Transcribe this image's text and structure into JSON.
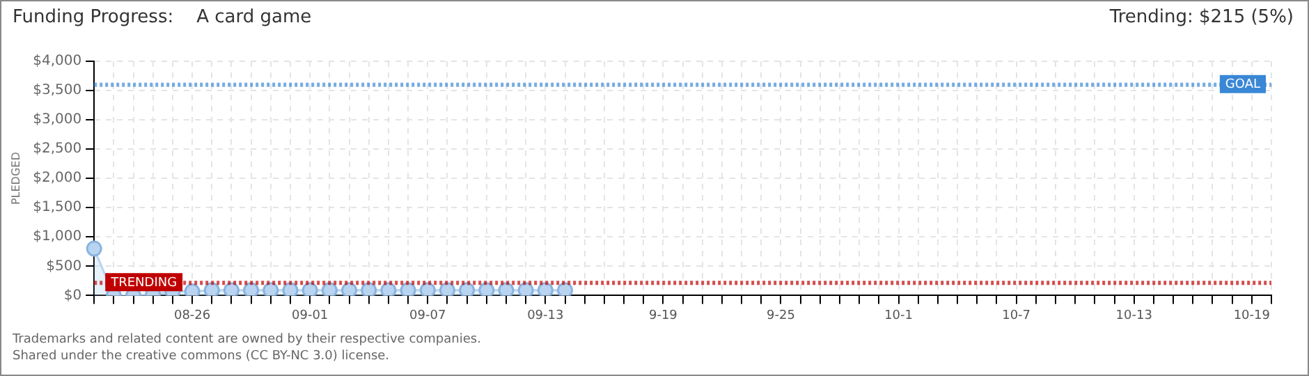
{
  "chart_data": {
    "type": "area",
    "title": "Funding Progress:    A card game",
    "subtitle": "Trending: $215 (5%)",
    "ylabel": "PLEDGED",
    "categories": [
      null,
      null,
      null,
      null,
      null,
      "08-26",
      null,
      null,
      null,
      null,
      null,
      "09-01",
      null,
      null,
      null,
      null,
      null,
      "09-07",
      null,
      null,
      null,
      null,
      null,
      "09-13",
      null,
      null,
      null,
      null,
      null,
      "9-19",
      null,
      null,
      null,
      null,
      null,
      "9-25",
      null,
      null,
      null,
      null,
      null,
      "10-1",
      null,
      null,
      null,
      null,
      null,
      "10-7",
      null,
      null,
      null,
      null,
      null,
      "10-13",
      null,
      null,
      null,
      null,
      null,
      "10-19",
      null
    ],
    "series": [
      {
        "color": "#b8d4f0",
        "values": [
          800,
          0,
          0,
          20,
          70,
          70,
          90,
          90,
          90,
          90,
          90,
          90,
          90,
          90,
          90,
          90,
          90,
          90,
          90,
          90,
          90,
          90,
          90,
          90,
          90,
          null,
          null,
          null,
          null,
          null,
          null,
          null,
          null,
          null,
          null,
          null,
          null,
          null,
          null,
          null,
          null,
          null,
          null,
          null,
          null,
          null,
          null,
          null,
          null,
          null,
          null,
          null,
          null,
          null,
          null,
          null,
          null,
          null,
          null,
          null,
          null
        ]
      }
    ],
    "ylim": [
      0,
      4000
    ],
    "yticks": [
      {
        "value": 0,
        "label": "$0"
      },
      {
        "value": 500,
        "label": "$500"
      },
      {
        "value": 1000,
        "label": "$1,000"
      },
      {
        "value": 1500,
        "label": "$1,500"
      },
      {
        "value": 2000,
        "label": "$2,000"
      },
      {
        "value": 2500,
        "label": "$2,500"
      },
      {
        "value": 3000,
        "label": "$3,000"
      },
      {
        "value": 3500,
        "label": "$3,500"
      },
      {
        "value": 4000,
        "label": "$4,000"
      }
    ],
    "ref_lines": [
      {
        "axis": "y",
        "value": 3600,
        "label": "GOAL",
        "color": "#3a87d6",
        "line_style": "dotted"
      },
      {
        "axis": "y",
        "value": 215,
        "label": "TRENDING",
        "color": "#c00000",
        "line_style": "dotted"
      }
    ],
    "grid": true,
    "legend": false,
    "marker": "circle",
    "line_style": "solid",
    "annotations": [
      "Trademarks and related content are owned by their respective companies.",
      "Shared under the creative commons (CC BY-NC 3.0) license."
    ]
  }
}
